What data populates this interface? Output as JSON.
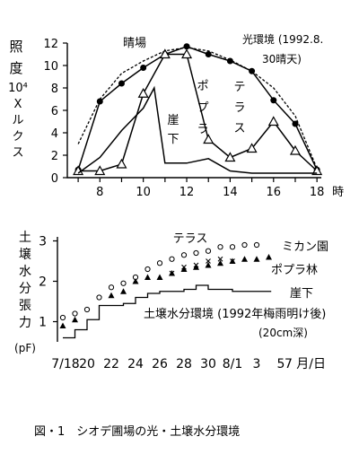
{
  "chart_data": [
    {
      "type": "line",
      "ylabel": "照度（10⁴ルクス）",
      "ylabel_jp": [
        "照",
        "度"
      ],
      "ylabel_unit": [
        "10⁴",
        "X",
        "ル",
        "ク",
        "ス"
      ],
      "xlabel_suffix": "時",
      "x_ticks": [
        "8",
        "10",
        "12",
        "14",
        "16",
        "18"
      ],
      "y_ticks": [
        "0",
        "2",
        "4",
        "6",
        "8",
        "10",
        "12"
      ],
      "xlim": [
        6.5,
        18.2
      ],
      "ylim": [
        0,
        12
      ],
      "legend_text": "光環境 (1992.8.",
      "legend_text2": "30晴天)",
      "series": [
        {
          "name": "晴場",
          "marker": "filled-circle",
          "style": "solid",
          "x": [
            7,
            8,
            9,
            10,
            11,
            12,
            13,
            14,
            15,
            16,
            17,
            18
          ],
          "y": [
            0.7,
            6.8,
            8.4,
            9.8,
            11.0,
            11.7,
            11.0,
            10.4,
            9.5,
            6.9,
            4.8,
            0.7
          ]
        },
        {
          "name": "ポプラ",
          "marker": "open-triangle",
          "style": "solid",
          "x": [
            7,
            8,
            9,
            10,
            11,
            12,
            13,
            14,
            15,
            16,
            17,
            18
          ],
          "y": [
            0.6,
            0.6,
            1.2,
            7.5,
            11.0,
            11.0,
            3.4,
            1.8,
            2.6,
            5.0,
            2.4,
            0.6
          ]
        },
        {
          "name": "崖下",
          "marker": "none",
          "style": "solid",
          "x": [
            7,
            8,
            9,
            10,
            10.5,
            11,
            12,
            13,
            14,
            15,
            16,
            17,
            18
          ],
          "y": [
            0.4,
            1.8,
            4.2,
            6.2,
            8.0,
            1.3,
            1.3,
            1.7,
            0.6,
            0.4,
            0.4,
            0.4,
            0.4
          ]
        },
        {
          "name": "光環境",
          "marker": "none",
          "style": "dashed",
          "x": [
            7,
            8,
            9,
            10,
            11,
            12,
            13,
            14,
            15,
            16,
            17,
            18
          ],
          "y": [
            3.0,
            7.0,
            9.3,
            10.4,
            11.3,
            11.6,
            11.3,
            10.5,
            9.5,
            8.0,
            5.5,
            0.8
          ]
        }
      ],
      "labels": {
        "hareba": "晴場",
        "gaika": [
          "崖",
          "下"
        ],
        "popura": [
          "ポ",
          "プ",
          "ラ"
        ],
        "terasu": [
          "テ",
          "ラ",
          "ス"
        ]
      }
    },
    {
      "type": "scatter",
      "ylabel": [
        "土",
        "壌",
        "水",
        "分",
        "張",
        "力"
      ],
      "ylabel_unit": "(pF)",
      "x_ticks": [
        "7/18",
        "20",
        "22",
        "24",
        "26",
        "28",
        "30",
        "8/1",
        "3",
        "5",
        "7 月/日"
      ],
      "y_ticks": [
        "1",
        "2",
        "3"
      ],
      "ylim": [
        0.5,
        3.1
      ],
      "series": [
        {
          "name": "テラス",
          "marker": "open-circle",
          "x": [
            0,
            1,
            2,
            3,
            4,
            5,
            6,
            7,
            8,
            9,
            10,
            11,
            12,
            13,
            14,
            15,
            16
          ],
          "y": [
            1.1,
            1.2,
            1.3,
            1.6,
            1.85,
            1.95,
            2.1,
            2.3,
            2.45,
            2.55,
            2.65,
            2.7,
            2.75,
            2.85,
            2.85,
            2.9,
            2.9
          ]
        },
        {
          "name": "ミカン園",
          "marker": "x",
          "x": [
            9,
            10,
            11,
            12,
            13,
            14
          ],
          "y": [
            2.2,
            2.35,
            2.4,
            2.5,
            2.55,
            2.5
          ]
        },
        {
          "name": "ポプラ林",
          "marker": "filled-triangle",
          "x": [
            0,
            1,
            4,
            5,
            6,
            7,
            8,
            9,
            10,
            11,
            12,
            13,
            14,
            15,
            16,
            17
          ],
          "y": [
            0.9,
            1.05,
            1.65,
            1.75,
            2.0,
            2.1,
            2.1,
            2.2,
            2.3,
            2.35,
            2.4,
            2.45,
            2.5,
            2.55,
            2.55,
            2.6
          ]
        },
        {
          "name": "崖下",
          "marker": "none",
          "style": "step",
          "x": [
            0,
            1,
            2,
            3,
            4,
            5,
            6,
            7,
            8,
            9,
            10,
            11,
            12,
            13,
            14,
            15,
            16
          ],
          "y": [
            0.6,
            0.6,
            0.8,
            1.05,
            1.4,
            1.4,
            1.45,
            1.6,
            1.7,
            1.75,
            1.75,
            1.8,
            1.9,
            1.8,
            1.8,
            1.75,
            1.75
          ]
        }
      ],
      "labels": {
        "terasu": "テラス",
        "mikan": "ミカン園",
        "popura": "ポプラ林",
        "gaika": "崖下",
        "env1": "土壌水分環境 (1992年梅雨明け後)",
        "env2": "(20cm深)"
      }
    }
  ],
  "caption": "図・1　シオデ圃場の光・土壌水分環境"
}
